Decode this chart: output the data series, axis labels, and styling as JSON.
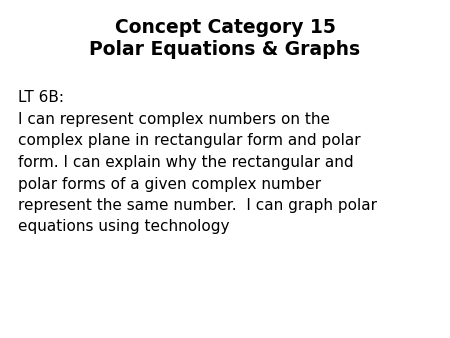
{
  "title_line1": "Concept Category 15",
  "title_line2": "Polar Equations & Graphs",
  "label": "LT 6B:",
  "body_lines": [
    "I can represent complex numbers on the",
    "complex plane in rectangular form and polar",
    "form. I can explain why the rectangular and",
    "polar forms of a given complex number",
    "represent the same number.  I can graph polar",
    "equations using technology"
  ],
  "background_color": "#ffffff",
  "text_color": "#000000",
  "title_fontsize": 13.5,
  "label_fontsize": 11,
  "body_fontsize": 11
}
